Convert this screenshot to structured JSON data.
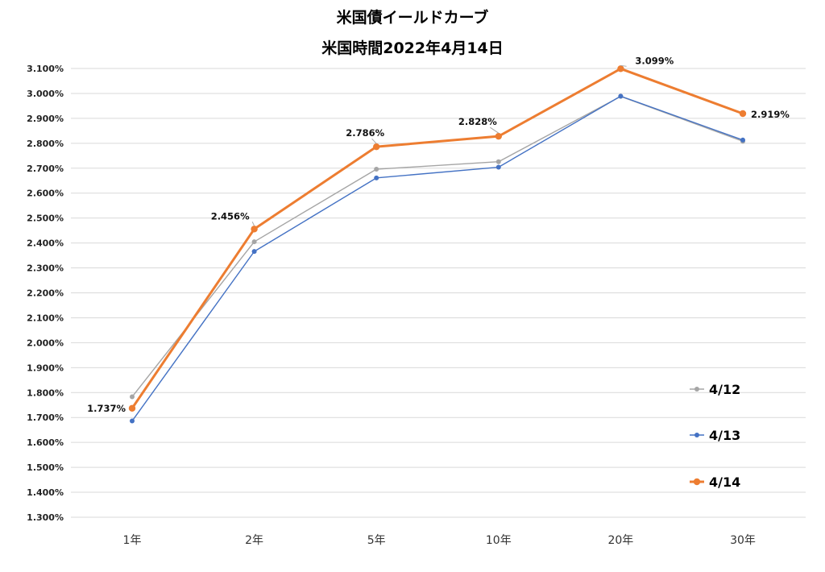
{
  "chart_data": {
    "type": "line",
    "title": "米国債イールドカーブ",
    "subtitle": "米国時間2022年4月14日",
    "categories": [
      "1年",
      "2年",
      "5年",
      "10年",
      "20年",
      "30年"
    ],
    "ylim": [
      1.3,
      3.1
    ],
    "ytick_step": 0.1,
    "ytick_labels": [
      "1.300%",
      "1.400%",
      "1.500%",
      "1.600%",
      "1.700%",
      "1.800%",
      "1.900%",
      "2.000%",
      "2.100%",
      "2.200%",
      "2.300%",
      "2.400%",
      "2.500%",
      "2.600%",
      "2.700%",
      "2.800%",
      "2.900%",
      "3.000%",
      "3.100%"
    ],
    "grid": true,
    "legend_position": "right-bottom",
    "series": [
      {
        "name": "4/12",
        "color": "#a5a5a5",
        "values": [
          1.783,
          2.405,
          2.696,
          2.726,
          2.988,
          2.808
        ]
      },
      {
        "name": "4/13",
        "color": "#4472c4",
        "values": [
          1.686,
          2.366,
          2.661,
          2.704,
          2.989,
          2.813
        ]
      },
      {
        "name": "4/14",
        "color": "#ed7d31",
        "values": [
          1.737,
          2.456,
          2.786,
          2.828,
          3.099,
          2.919
        ],
        "data_labels": [
          "1.737%",
          "2.456%",
          "2.786%",
          "2.828%",
          "3.099%",
          "2.919%"
        ]
      }
    ]
  }
}
